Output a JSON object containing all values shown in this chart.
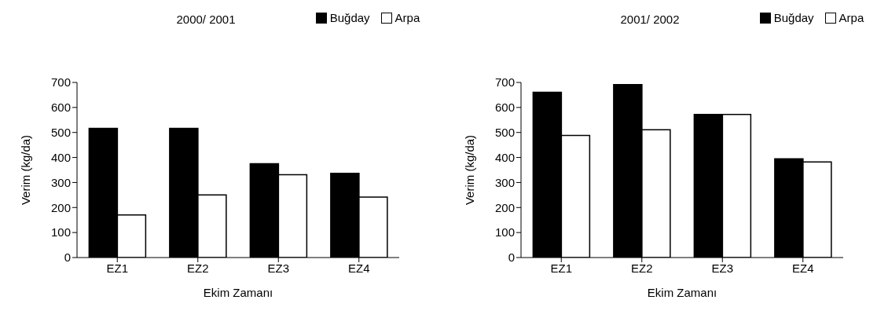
{
  "chart_data": [
    {
      "type": "bar",
      "title": "2000/ 2001",
      "xlabel": "Ekim Zamanı",
      "ylabel": "Verim (kg/da)",
      "categories": [
        "EZ1",
        "EZ2",
        "EZ3",
        "EZ4"
      ],
      "series": [
        {
          "name": "Buğday",
          "color": "#000000",
          "values": [
            516,
            516,
            375,
            337
          ]
        },
        {
          "name": "Arpa",
          "color": "#ffffff",
          "values": [
            170,
            250,
            331,
            242
          ]
        }
      ],
      "ylim": [
        0,
        700
      ],
      "yticks": [
        0,
        100,
        200,
        300,
        400,
        500,
        600,
        700
      ],
      "grid": false,
      "legend": "top"
    },
    {
      "type": "bar",
      "title": "2001/ 2002",
      "xlabel": "Ekim Zamanı",
      "ylabel": "Verim (kg/da)",
      "categories": [
        "EZ1",
        "EZ2",
        "EZ3",
        "EZ4"
      ],
      "series": [
        {
          "name": "Buğday",
          "color": "#000000",
          "values": [
            661,
            691,
            572,
            395
          ]
        },
        {
          "name": "Arpa",
          "color": "#ffffff",
          "values": [
            488,
            511,
            572,
            382
          ]
        }
      ],
      "ylim": [
        0,
        700
      ],
      "yticks": [
        0,
        100,
        200,
        300,
        400,
        500,
        600,
        700
      ],
      "grid": false,
      "legend": "top"
    }
  ]
}
